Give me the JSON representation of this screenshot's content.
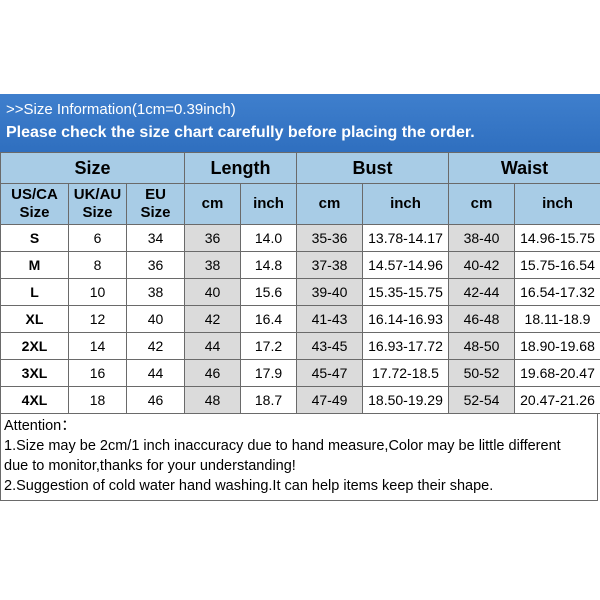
{
  "banner": {
    "line1": ">>Size Information(1cm=0.39inch)",
    "line2": "Please check the size chart carefully before placing the order."
  },
  "table": {
    "groups": [
      "Size",
      "Length",
      "Bust",
      "Waist"
    ],
    "subheaders": {
      "usca_1": "US/CA",
      "usca_2": "Size",
      "ukau_1": "UK/AU",
      "ukau_2": "Size",
      "eu_1": "EU",
      "eu_2": "Size",
      "length_cm": "cm",
      "length_inch": "inch",
      "bust_cm": "cm",
      "bust_inch": "inch",
      "waist_cm": "cm",
      "waist_inch": "inch"
    },
    "rows": [
      [
        "S",
        "6",
        "34",
        "36",
        "14.0",
        "35-36",
        "13.78-14.17",
        "38-40",
        "14.96-15.75"
      ],
      [
        "M",
        "8",
        "36",
        "38",
        "14.8",
        "37-38",
        "14.57-14.96",
        "40-42",
        "15.75-16.54"
      ],
      [
        "L",
        "10",
        "38",
        "40",
        "15.6",
        "39-40",
        "15.35-15.75",
        "42-44",
        "16.54-17.32"
      ],
      [
        "XL",
        "12",
        "40",
        "42",
        "16.4",
        "41-43",
        "16.14-16.93",
        "46-48",
        "18.11-18.9"
      ],
      [
        "2XL",
        "14",
        "42",
        "44",
        "17.2",
        "43-45",
        "16.93-17.72",
        "48-50",
        "18.90-19.68"
      ],
      [
        "3XL",
        "16",
        "44",
        "46",
        "17.9",
        "45-47",
        "17.72-18.5",
        "50-52",
        "19.68-20.47"
      ],
      [
        "4XL",
        "18",
        "46",
        "48",
        "18.7",
        "47-49",
        "18.50-19.29",
        "52-54",
        "20.47-21.26"
      ]
    ]
  },
  "attention": {
    "heading": "Attention：",
    "line1": "1.Size may be 2cm/1 inch inaccuracy due to hand measure,Color may be little different",
    "line2": "due to monitor,thanks for your understanding!",
    "line3": "2.Suggestion of cold water hand washing.It can help items keep their shape."
  },
  "colors": {
    "banner": "#3a7ac8",
    "header": "#a8cce6",
    "shaded_cell": "#dbdbdb"
  }
}
